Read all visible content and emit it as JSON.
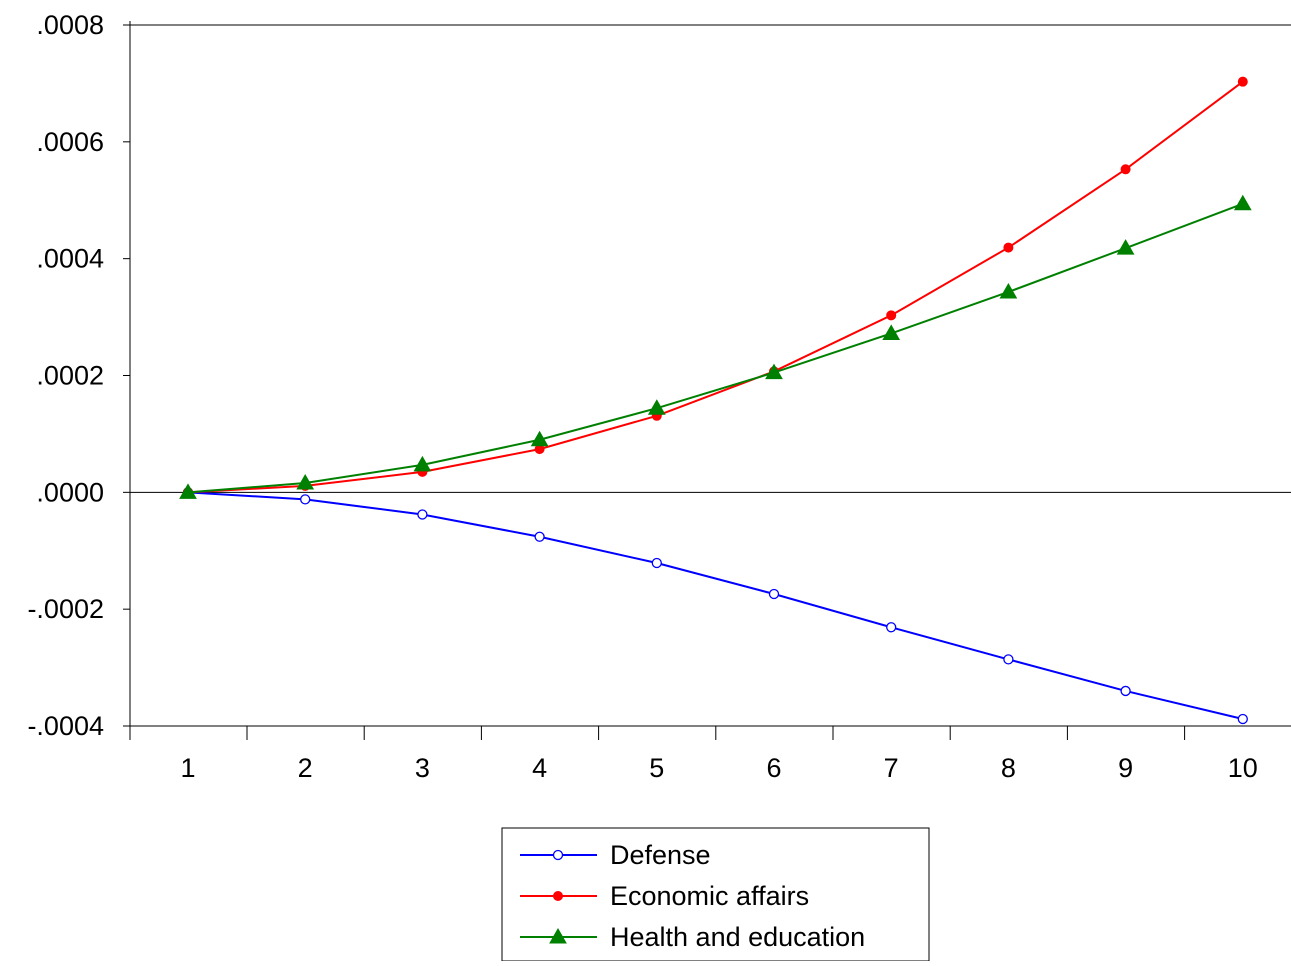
{
  "chart_data": {
    "type": "line",
    "title": "",
    "xlabel": "",
    "ylabel": "",
    "x": [
      1,
      2,
      3,
      4,
      5,
      6,
      7,
      8,
      9,
      10
    ],
    "x_tick_labels": [
      "1",
      "2",
      "3",
      "4",
      "5",
      "6",
      "7",
      "8",
      "9",
      "10"
    ],
    "ylim": [
      -0.0004,
      0.0008
    ],
    "y_ticks": [
      -0.0004,
      -0.0002,
      0.0,
      0.0002,
      0.0004,
      0.0006,
      0.0008
    ],
    "y_tick_labels": [
      "-.0004",
      "-.0002",
      ".0000",
      ".0002",
      ".0004",
      ".0006",
      ".0008"
    ],
    "zero_line": true,
    "grid": false,
    "legend_position": "bottom-center",
    "series": [
      {
        "name": "Defense",
        "color": "#0000ff",
        "marker": "open-circle",
        "values": [
          0.0,
          -1.2e-05,
          -3.8e-05,
          -7.6e-05,
          -0.000121,
          -0.000174,
          -0.000231,
          -0.000286,
          -0.00034,
          -0.000388
        ]
      },
      {
        "name": "Economic affairs",
        "color": "#ff0000",
        "marker": "filled-circle",
        "values": [
          0.0,
          1.1e-05,
          3.5e-05,
          7.4e-05,
          0.000131,
          0.000207,
          0.000303,
          0.000419,
          0.000553,
          0.000703
        ]
      },
      {
        "name": "Health and education",
        "color": "#008000",
        "marker": "filled-triangle",
        "values": [
          0.0,
          1.6e-05,
          4.7e-05,
          9e-05,
          0.000144,
          0.000205,
          0.000272,
          0.000343,
          0.000418,
          0.000494
        ]
      }
    ]
  }
}
